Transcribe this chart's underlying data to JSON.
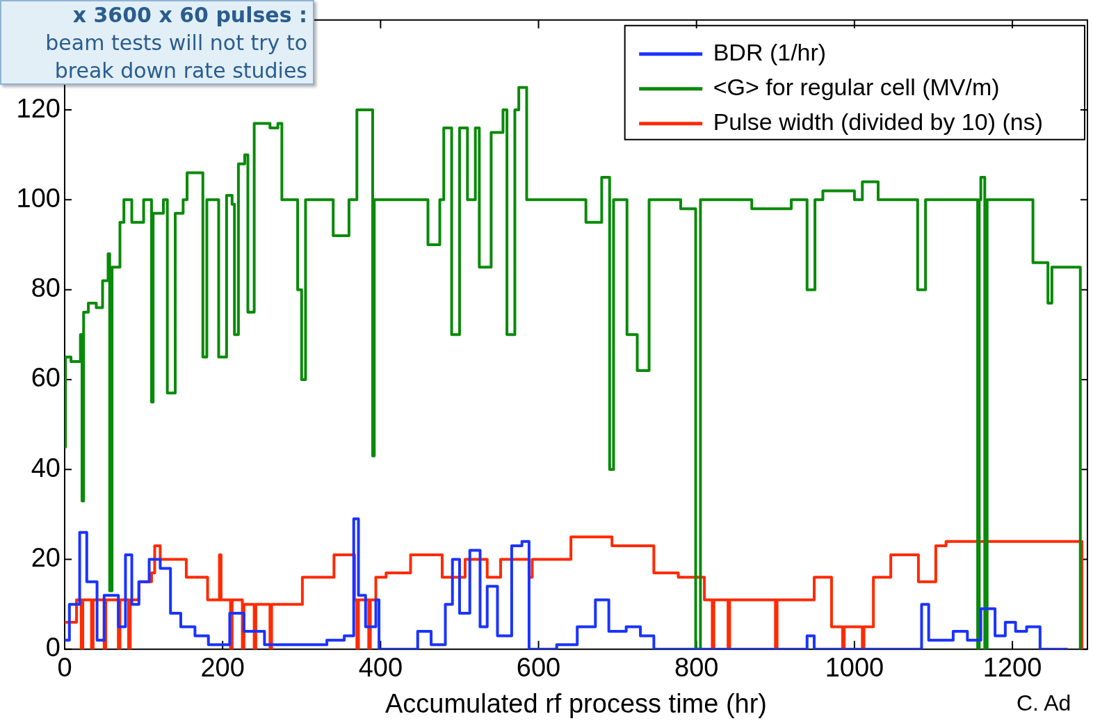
{
  "chart_data": {
    "type": "step",
    "xlabel": "Accumulated rf process time (hr)",
    "xlim": [
      0,
      1295
    ],
    "xticks": [
      0,
      200,
      400,
      600,
      800,
      1000,
      1200
    ],
    "ylim": [
      0,
      140
    ],
    "yticks": [
      0,
      20,
      40,
      60,
      80,
      100,
      120
    ],
    "legend": "top right",
    "grid": false,
    "line_style": "solid",
    "marker": "none",
    "annotations": [
      "x 3600 x 60 pulses :",
      "beam tests will not try to",
      "break down rate studies",
      "C. Ad"
    ],
    "series": [
      {
        "name": "BDR (1/hr)",
        "color": "#1a33ff",
        "x": [
          0,
          6,
          19,
          28,
          41,
          50,
          68,
          77,
          85,
          94,
          107,
          121,
          134,
          147,
          165,
          182,
          209,
          227,
          253,
          288,
          332,
          354,
          366,
          372,
          381,
          394,
          398,
          447,
          464,
          482,
          491,
          500,
          513,
          526,
          535,
          548,
          566,
          579,
          588,
          623,
          649,
          672,
          689,
          711,
          729,
          746,
          940,
          949,
          1085,
          1094,
          1125,
          1143,
          1160,
          1178,
          1191,
          1204,
          1218,
          1235,
          1270
        ],
        "values": [
          2,
          10,
          26,
          15,
          2,
          12,
          5,
          21,
          10,
          15,
          20,
          18,
          8,
          5,
          3,
          1,
          8,
          4,
          1,
          1,
          2,
          3,
          29,
          12,
          5,
          11,
          0,
          4,
          1,
          10,
          20,
          8,
          22,
          5,
          14,
          3,
          23,
          24,
          0,
          1,
          5,
          11,
          4,
          5,
          3,
          0,
          3,
          0,
          10,
          2,
          4,
          2,
          9,
          3,
          6,
          4,
          5,
          0,
          0
        ]
      },
      {
        "name": "<G> for regular cell (MV/m)",
        "color": "#0a8a0a",
        "x": [
          0,
          1,
          8,
          18,
          20,
          22,
          24,
          30,
          40,
          48,
          55,
          57,
          60,
          70,
          75,
          85,
          100,
          110,
          112,
          125,
          130,
          140,
          150,
          155,
          170,
          175,
          180,
          190,
          195,
          205,
          212,
          215,
          220,
          228,
          232,
          240,
          260,
          270,
          275,
          290,
          295,
          300,
          305,
          330,
          340,
          360,
          370,
          385,
          390,
          392,
          420,
          450,
          460,
          475,
          480,
          490,
          500,
          510,
          520,
          525,
          540,
          555,
          560,
          570,
          575,
          585,
          600,
          650,
          660,
          680,
          690,
          695,
          712,
          725,
          740,
          780,
          799,
          805,
          830,
          870,
          900,
          920,
          940,
          950,
          960,
          1000,
          1010,
          1030,
          1070,
          1080,
          1090,
          1130,
          1156,
          1158,
          1160,
          1165,
          1168,
          1190,
          1226,
          1240,
          1245,
          1250,
          1280,
          1286
        ],
        "values": [
          45,
          65,
          64,
          64,
          70,
          33,
          75,
          77,
          76,
          82,
          88,
          13,
          85,
          95,
          100,
          95,
          100,
          55,
          97,
          100,
          57,
          97,
          100,
          106,
          106,
          65,
          100,
          100,
          65,
          101,
          99,
          70,
          108,
          110,
          75,
          117,
          116,
          117,
          100,
          100,
          80,
          60,
          100,
          100,
          92,
          100,
          120,
          120,
          43,
          100,
          100,
          100,
          90,
          100,
          116,
          70,
          116,
          100,
          116,
          85,
          115,
          120,
          70,
          120,
          125,
          100,
          100,
          100,
          95,
          105,
          40,
          100,
          70,
          62,
          100,
          98,
          0,
          100,
          100,
          98,
          98,
          100,
          80,
          100,
          102,
          100,
          104,
          100,
          100,
          80,
          100,
          100,
          0,
          100,
          105,
          0,
          100,
          100,
          86,
          86,
          77,
          85,
          85,
          0
        ]
      },
      {
        "name": "Pulse width (divided by 10) (ns)",
        "color": "#ff2a00",
        "x": [
          0,
          15,
          21,
          23,
          34,
          36,
          50,
          52,
          68,
          70,
          81,
          83,
          94,
          110,
          114,
          121,
          154,
          181,
          196,
          198,
          210,
          212,
          225,
          227,
          240,
          242,
          260,
          262,
          301,
          341,
          367,
          370,
          372,
          385,
          387,
          394,
          407,
          438,
          478,
          507,
          535,
          552,
          588,
          592,
          641,
          693,
          746,
          777,
          810,
          820,
          822,
          840,
          842,
          900,
          902,
          949,
          971,
          985,
          987,
          1010,
          1012,
          1024,
          1046,
          1081,
          1103,
          1116,
          1288
        ],
        "values": [
          6,
          11,
          0,
          11,
          0,
          11,
          0,
          11,
          0,
          11,
          0,
          11,
          15,
          17,
          23,
          20,
          16,
          11,
          21,
          11,
          0,
          11,
          0,
          10,
          0,
          10,
          0,
          10,
          16,
          21,
          11,
          0,
          11,
          0,
          11,
          16,
          17,
          21,
          16,
          20,
          16,
          20,
          16,
          20,
          25,
          23,
          17,
          16,
          11,
          0,
          11,
          0,
          11,
          0,
          11,
          16,
          5,
          0,
          5,
          0,
          5,
          16,
          21,
          15,
          23,
          24,
          0
        ]
      }
    ]
  }
}
